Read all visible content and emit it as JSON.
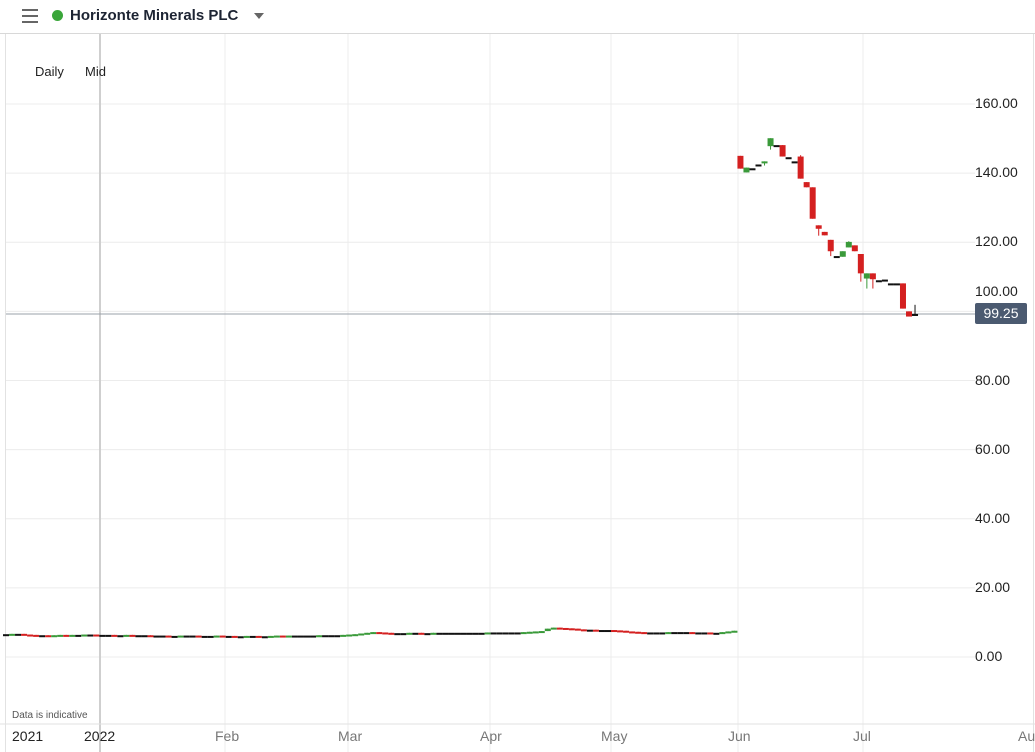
{
  "header": {
    "title": "Horizonte Minerals PLC",
    "status_color": "#3aa63a",
    "menu_icon": "hamburger-icon",
    "dropdown_icon": "caret-down-icon"
  },
  "chart_meta": {
    "interval": "Daily",
    "price_type": "Mid",
    "disclaimer": "Data is indicative",
    "current_price": "99.25"
  },
  "colors": {
    "up": "#3a9a3a",
    "down": "#d42020",
    "flat": "#111111",
    "current_label": "#4b5a70"
  },
  "chart_data": {
    "type": "candlestick",
    "y_ticks": [
      "160.00",
      "140.00",
      "120.00",
      "100.00",
      "80.00",
      "60.00",
      "40.00",
      "20.00",
      "0.00"
    ],
    "ylim": [
      0,
      160
    ],
    "x_ticks": [
      "2021",
      "2022",
      "Feb",
      "Mar",
      "Apr",
      "May",
      "Jun",
      "Jul",
      "Au"
    ],
    "grid": true,
    "current_price": 99.25,
    "early_closes": [
      6.6,
      6.7,
      6.7,
      6.5,
      6.4,
      6.3,
      6.3,
      6.2,
      6.3,
      6.4,
      6.3,
      6.4,
      6.4,
      6.5,
      6.5,
      6.4,
      6.4,
      6.4,
      6.3,
      6.3,
      6.4,
      6.3,
      6.3,
      6.3,
      6.2,
      6.2,
      6.2,
      6.1,
      6.1,
      6.2,
      6.2,
      6.2,
      6.1,
      6.1,
      6.1,
      6.2,
      6.1,
      6.1,
      6.0,
      6.0,
      6.1,
      6.1,
      6.0,
      6.0,
      6.1,
      6.2,
      6.1,
      6.2,
      6.2,
      6.2,
      6.2,
      6.2,
      6.3,
      6.3,
      6.3,
      6.3,
      6.4,
      6.5,
      6.6,
      6.8,
      7.0,
      7.2,
      7.1,
      7.0,
      6.9,
      6.9,
      6.9,
      7.0,
      7.0,
      6.9,
      6.9,
      7.0,
      7.0,
      7.0,
      7.0,
      7.0,
      7.0,
      7.0,
      7.0,
      7.0,
      7.1,
      7.1,
      7.1,
      7.1,
      7.1,
      7.1,
      7.2,
      7.3,
      7.4,
      7.5,
      8.2,
      8.5,
      8.4,
      8.3,
      8.2,
      8.0,
      7.9,
      7.9,
      7.8,
      7.8,
      7.8,
      7.7,
      7.6,
      7.4,
      7.3,
      7.2,
      7.1,
      7.1,
      7.1,
      7.1,
      7.2,
      7.2,
      7.2,
      7.2,
      7.1,
      7.1,
      7.1,
      7.0,
      7.0,
      7.2,
      7.4,
      7.6
    ],
    "recent_ohlc": [
      [
        145.0,
        145.0,
        141.3,
        141.3
      ],
      [
        140.2,
        141.6,
        140.2,
        141.6
      ],
      [
        141.4,
        141.4,
        141.4,
        141.4
      ],
      [
        142.5,
        142.5,
        142.5,
        142.5
      ],
      [
        142.9,
        143.4,
        142.2,
        143.4
      ],
      [
        147.8,
        150.1,
        146.8,
        150.1
      ],
      [
        148.1,
        148.1,
        148.1,
        148.1
      ],
      [
        148.1,
        148.1,
        144.8,
        144.8
      ],
      [
        144.6,
        144.6,
        144.6,
        144.6
      ],
      [
        143.4,
        143.4,
        143.4,
        143.4
      ],
      [
        144.8,
        145.2,
        138.4,
        138.4
      ],
      [
        137.4,
        137.4,
        135.9,
        135.9
      ],
      [
        135.9,
        135.9,
        126.8,
        126.8
      ],
      [
        124.9,
        124.9,
        121.9,
        123.9
      ],
      [
        123.0,
        123.0,
        122.0,
        122.0
      ],
      [
        120.7,
        120.7,
        116.0,
        117.4
      ],
      [
        116.0,
        116.0,
        116.0,
        116.0
      ],
      [
        115.8,
        117.4,
        115.8,
        117.4
      ],
      [
        118.5,
        120.3,
        118.5,
        120.1
      ],
      [
        119.1,
        119.1,
        117.4,
        117.4
      ],
      [
        116.6,
        116.6,
        108.6,
        111.0
      ],
      [
        109.5,
        111.0,
        106.6,
        111.0
      ],
      [
        111.0,
        111.0,
        106.6,
        109.3
      ],
      [
        109.0,
        109.0,
        109.0,
        109.0
      ],
      [
        109.2,
        109.2,
        109.2,
        109.2
      ],
      [
        108.1,
        108.1,
        108.1,
        108.1
      ],
      [
        108.1,
        108.1,
        108.1,
        108.1
      ],
      [
        108.1,
        108.1,
        100.8,
        100.8
      ],
      [
        100.0,
        100.0,
        98.5,
        98.5
      ],
      [
        99.25,
        101.9,
        99.0,
        99.25
      ]
    ]
  }
}
